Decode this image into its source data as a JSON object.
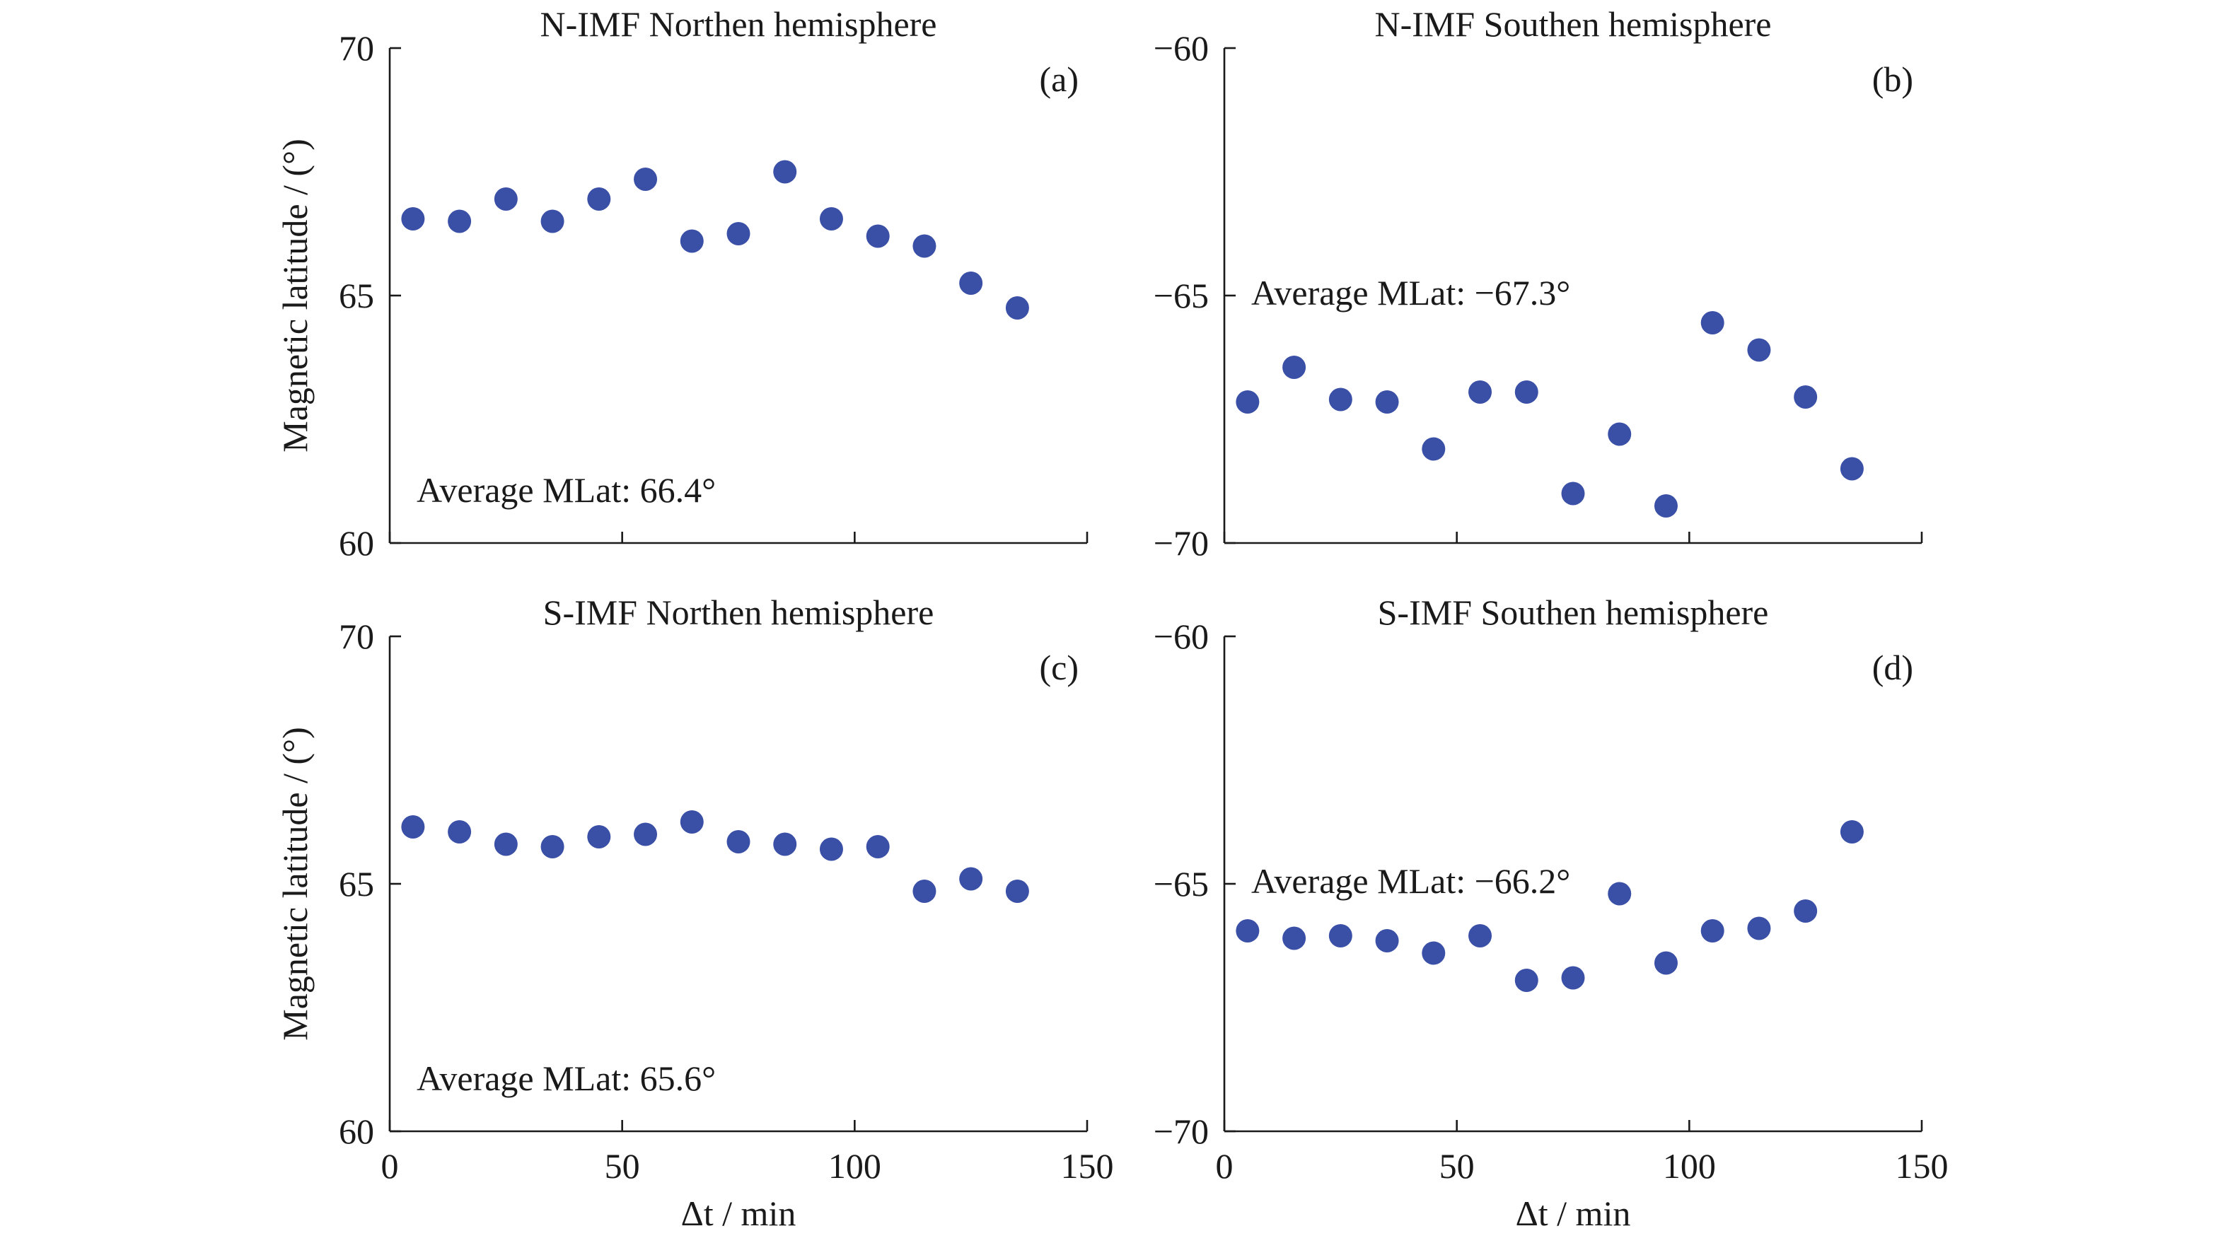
{
  "figure": {
    "x_axis_label": "Δt / min",
    "y_axis_label": "Magnetic latitude / (°)"
  },
  "chart_data": [
    {
      "type": "scatter",
      "id": "a",
      "title": "N-IMF Northen hemisphere",
      "panel_label": "(a)",
      "annotation": "Average MLat: 66.4°",
      "xlim": [
        0,
        150
      ],
      "ylim": [
        60,
        70
      ],
      "xticks": [
        0,
        50,
        100,
        150
      ],
      "yticks": [
        60,
        65,
        70
      ],
      "xtick_labels": [
        "0",
        "50",
        "100",
        "150"
      ],
      "ytick_labels": [
        "60",
        "65",
        "70"
      ],
      "marker_color": "#3a4fa6",
      "series": [
        {
          "x": [
            5,
            15,
            25,
            35,
            45,
            55,
            65,
            75,
            85,
            95,
            105,
            115,
            125,
            135
          ],
          "y": [
            66.55,
            66.5,
            66.95,
            66.5,
            66.95,
            67.35,
            66.1,
            66.25,
            67.5,
            66.55,
            66.2,
            66.0,
            65.25,
            64.75
          ]
        }
      ]
    },
    {
      "type": "scatter",
      "id": "b",
      "title": "N-IMF Southen hemisphere",
      "panel_label": "(b)",
      "annotation": "Average MLat: −67.3°",
      "xlim": [
        0,
        150
      ],
      "ylim": [
        -70,
        -60
      ],
      "xticks": [
        0,
        50,
        100,
        150
      ],
      "yticks": [
        -70,
        -65,
        -60
      ],
      "xtick_labels": [
        "0",
        "50",
        "100",
        "150"
      ],
      "ytick_labels": [
        "−70",
        "−65",
        "−60"
      ],
      "marker_color": "#3a4fa6",
      "series": [
        {
          "x": [
            5,
            15,
            25,
            35,
            45,
            55,
            65,
            75,
            85,
            95,
            105,
            115,
            125,
            135
          ],
          "y": [
            -67.15,
            -66.45,
            -67.1,
            -67.15,
            -68.1,
            -66.95,
            -66.95,
            -69.0,
            -67.8,
            -69.25,
            -65.55,
            -66.1,
            -67.05,
            -68.5
          ]
        }
      ]
    },
    {
      "type": "scatter",
      "id": "c",
      "title": "S-IMF Northen hemisphere",
      "panel_label": "(c)",
      "annotation": "Average MLat: 65.6°",
      "xlim": [
        0,
        150
      ],
      "ylim": [
        60,
        70
      ],
      "xticks": [
        0,
        50,
        100,
        150
      ],
      "yticks": [
        60,
        65,
        70
      ],
      "xtick_labels": [
        "0",
        "50",
        "100",
        "150"
      ],
      "ytick_labels": [
        "60",
        "65",
        "70"
      ],
      "marker_color": "#3a4fa6",
      "series": [
        {
          "x": [
            5,
            15,
            25,
            35,
            45,
            55,
            65,
            75,
            85,
            95,
            105,
            115,
            125,
            135
          ],
          "y": [
            66.15,
            66.05,
            65.8,
            65.75,
            65.95,
            66.0,
            66.25,
            65.85,
            65.8,
            65.7,
            65.75,
            64.85,
            65.1,
            64.85
          ]
        }
      ]
    },
    {
      "type": "scatter",
      "id": "d",
      "title": "S-IMF Southen hemisphere",
      "panel_label": "(d)",
      "annotation": "Average MLat: −66.2°",
      "xlim": [
        0,
        150
      ],
      "ylim": [
        -70,
        -60
      ],
      "xticks": [
        0,
        50,
        100,
        150
      ],
      "yticks": [
        -70,
        -65,
        -60
      ],
      "xtick_labels": [
        "0",
        "50",
        "100",
        "150"
      ],
      "ytick_labels": [
        "−70",
        "−65",
        "−60"
      ],
      "marker_color": "#3a4fa6",
      "series": [
        {
          "x": [
            5,
            15,
            25,
            35,
            45,
            55,
            65,
            75,
            85,
            95,
            105,
            115,
            125,
            135
          ],
          "y": [
            -65.95,
            -66.1,
            -66.05,
            -66.15,
            -66.4,
            -66.05,
            -66.95,
            -66.9,
            -65.2,
            -66.6,
            -65.95,
            -65.9,
            -65.55,
            -63.95
          ]
        }
      ]
    }
  ]
}
